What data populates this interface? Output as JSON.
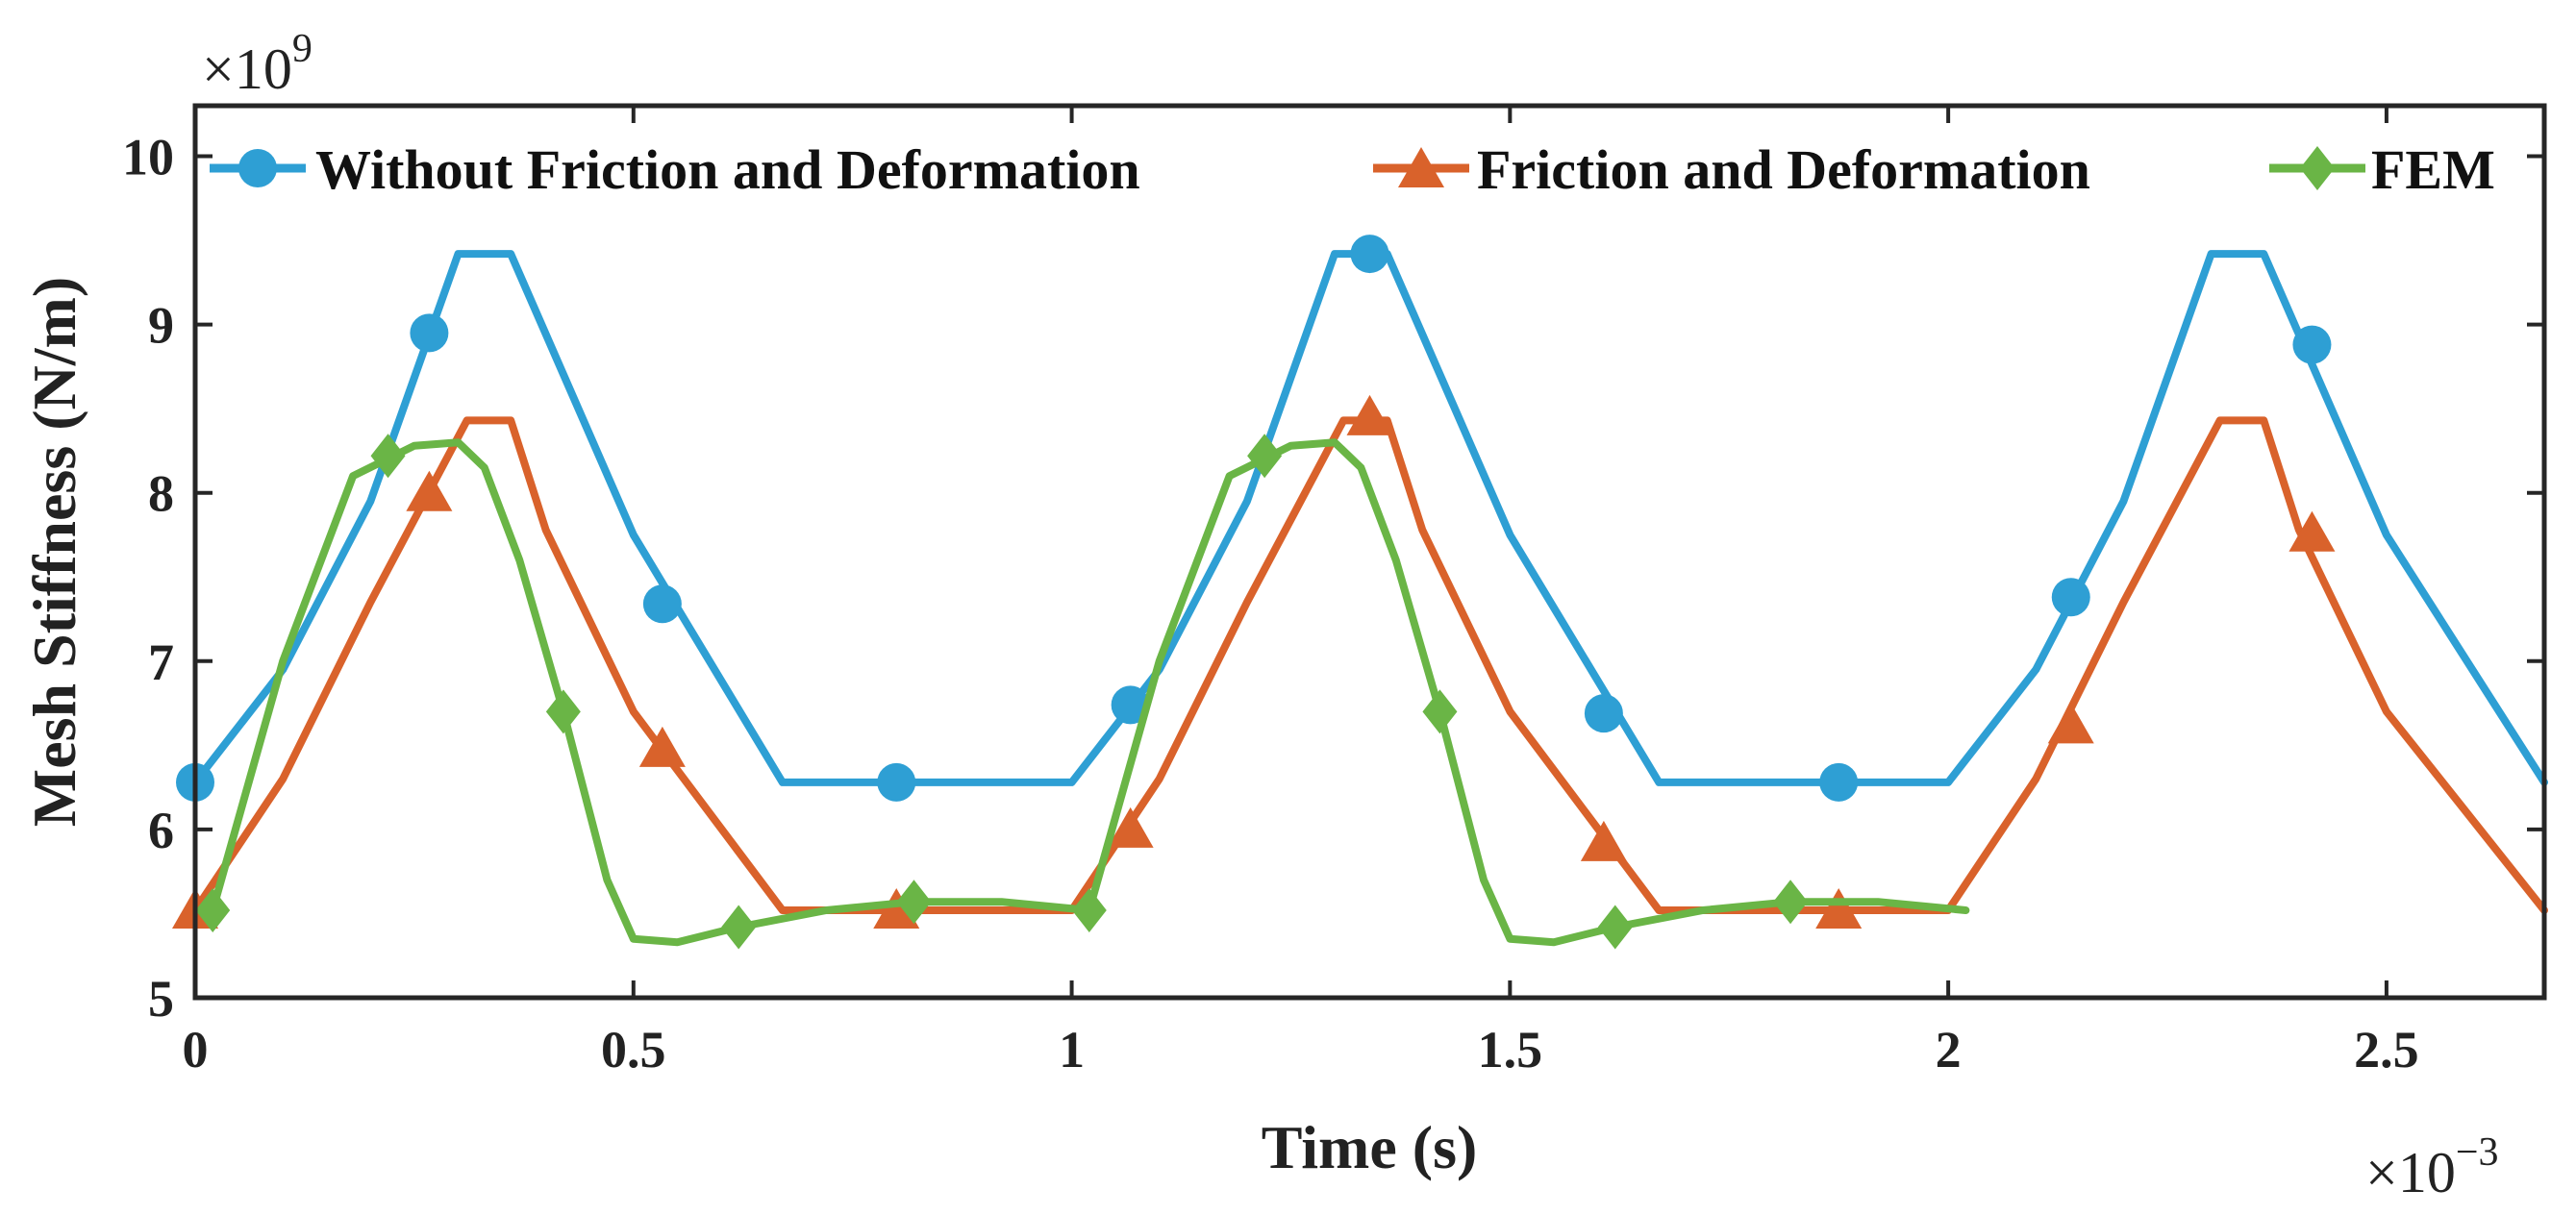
{
  "chart_data": {
    "type": "line",
    "title": "",
    "xlabel": "Time (s)",
    "ylabel": "Mesh Stiffness (N/m)",
    "x_multiplier": {
      "base": "×10",
      "exp": "−3"
    },
    "y_multiplier": {
      "base": "×10",
      "exp": "9"
    },
    "xlim": [
      0,
      2.68
    ],
    "ylim": [
      5,
      10.3
    ],
    "xticks": [
      0,
      0.5,
      1,
      1.5,
      2,
      2.5
    ],
    "xtick_labels": [
      "0",
      "0.5",
      "1",
      "1.5",
      "2",
      "2.5"
    ],
    "yticks": [
      5,
      6,
      7,
      8,
      9,
      10
    ],
    "ytick_labels": [
      "5",
      "6",
      "7",
      "8",
      "9",
      "10"
    ],
    "grid": false,
    "legend_position": "top",
    "series": [
      {
        "name": "Without Friction and Deformation",
        "color": "#2E9FD4",
        "marker": "circle",
        "x": [
          0,
          0.1,
          0.2,
          0.3,
          0.36,
          0.5,
          0.67,
          1.0,
          1.1,
          1.2,
          1.3,
          1.36,
          1.5,
          1.67,
          2.0,
          2.1,
          2.2,
          2.3,
          2.36,
          2.5,
          2.68
        ],
        "y": [
          6.28,
          6.95,
          7.95,
          9.42,
          9.42,
          7.75,
          6.28,
          6.28,
          6.95,
          7.95,
          9.42,
          9.42,
          7.75,
          6.28,
          6.28,
          6.95,
          7.95,
          9.42,
          9.42,
          7.75,
          6.28
        ],
        "marker_x": [
          0,
          0.267,
          0.533,
          0.8,
          1.067,
          1.34,
          1.607,
          1.875,
          2.14,
          2.415
        ],
        "marker_y": [
          6.28,
          8.95,
          7.34,
          6.28,
          6.74,
          9.42,
          6.69,
          6.28,
          7.38,
          8.88
        ]
      },
      {
        "name": "Friction and Deformation",
        "color": "#D9622B",
        "marker": "triangle",
        "x": [
          0,
          0.1,
          0.2,
          0.31,
          0.36,
          0.4,
          0.5,
          0.67,
          1.0,
          1.1,
          1.2,
          1.31,
          1.36,
          1.4,
          1.5,
          1.67,
          2.0,
          2.1,
          2.2,
          2.31,
          2.36,
          2.4,
          2.5,
          2.68
        ],
        "y": [
          5.52,
          6.3,
          7.35,
          8.43,
          8.43,
          7.78,
          6.7,
          5.52,
          5.52,
          6.3,
          7.35,
          8.43,
          8.43,
          7.78,
          6.7,
          5.52,
          5.52,
          6.3,
          7.35,
          8.43,
          8.43,
          7.78,
          6.7,
          5.52
        ],
        "marker_x": [
          0,
          0.267,
          0.533,
          0.8,
          1.067,
          1.34,
          1.607,
          1.875,
          2.14,
          2.415
        ],
        "marker_y": [
          5.52,
          8.0,
          6.48,
          5.52,
          6.0,
          8.45,
          5.92,
          5.52,
          6.62,
          7.76
        ]
      },
      {
        "name": "FEM",
        "color": "#6AB546",
        "marker": "diamond",
        "x": [
          0.02,
          0.1,
          0.18,
          0.25,
          0.3,
          0.33,
          0.37,
          0.42,
          0.47,
          0.5,
          0.55,
          0.62,
          0.72,
          0.82,
          0.92,
          1.02,
          1.1,
          1.18,
          1.25,
          1.3,
          1.33,
          1.37,
          1.42,
          1.47,
          1.5,
          1.55,
          1.62,
          1.72,
          1.82,
          1.92,
          2.02
        ],
        "y": [
          5.52,
          7.0,
          8.1,
          8.28,
          8.3,
          8.15,
          7.6,
          6.7,
          5.7,
          5.35,
          5.33,
          5.42,
          5.52,
          5.57,
          5.57,
          5.52,
          7.0,
          8.1,
          8.28,
          8.3,
          8.15,
          7.6,
          6.7,
          5.7,
          5.35,
          5.33,
          5.42,
          5.52,
          5.57,
          5.57,
          5.52
        ],
        "marker_x": [
          0.02,
          0.22,
          0.42,
          0.62,
          0.82,
          1.02,
          1.22,
          1.42,
          1.62,
          1.82
        ],
        "marker_y": [
          5.52,
          8.22,
          6.7,
          5.42,
          5.57,
          5.52,
          8.22,
          6.7,
          5.42,
          5.57
        ]
      }
    ]
  }
}
